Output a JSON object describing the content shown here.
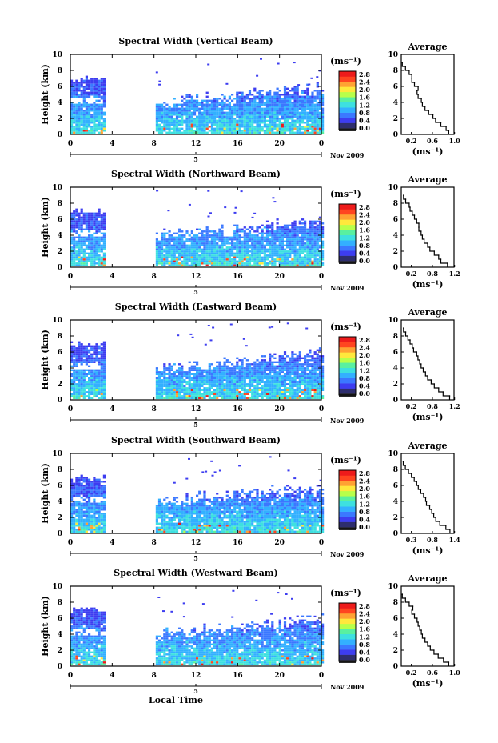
{
  "chart_data": [
    {
      "type": "heatmap",
      "title": "Spectral Width (Vertical Beam)",
      "ylabel": "Height (km)",
      "x_ticks": [
        "0",
        "4",
        "8",
        "12",
        "16",
        "20",
        "0"
      ],
      "y_ticks": [
        "0",
        "2",
        "4",
        "6",
        "8",
        "10"
      ],
      "xlim": [
        0,
        24
      ],
      "ylim": [
        0,
        10
      ],
      "day_label": "5",
      "date_label": "Nov 2009",
      "colorbar": {
        "unit": "(ms⁻¹)",
        "ticks": [
          "0.0",
          "0.4",
          "0.8",
          "1.2",
          "1.6",
          "2.0",
          "2.4",
          "2.8"
        ],
        "range": [
          0,
          2.8
        ]
      },
      "profile": {
        "title": "Average",
        "xlabel": "(ms⁻¹)",
        "x_ticks": [
          "0.2",
          "0.6",
          "1.0"
        ],
        "xlim": [
          0.1,
          1.1
        ],
        "heights": [
          0.5,
          1,
          1.5,
          2,
          2.5,
          3,
          3.5,
          4,
          4.5,
          5,
          5.5,
          6,
          6.5,
          7,
          7.5,
          8,
          8.5,
          9
        ],
        "values": [
          1.0,
          0.95,
          0.85,
          0.75,
          0.7,
          0.62,
          0.55,
          0.5,
          0.48,
          0.42,
          0.4,
          0.42,
          0.35,
          0.3,
          0.3,
          0.25,
          0.18,
          0.12
        ]
      }
    },
    {
      "type": "heatmap",
      "title": "Spectral Width (Northward Beam)",
      "ylabel": "Height (km)",
      "x_ticks": [
        "0",
        "4",
        "8",
        "12",
        "16",
        "20",
        "0"
      ],
      "y_ticks": [
        "0",
        "2",
        "4",
        "6",
        "8",
        "10"
      ],
      "xlim": [
        0,
        24
      ],
      "ylim": [
        0,
        10
      ],
      "day_label": "5",
      "date_label": "Nov 2009",
      "colorbar": {
        "unit": "(ms⁻¹)",
        "ticks": [
          "0.0",
          "0.4",
          "0.8",
          "1.2",
          "1.6",
          "2.0",
          "2.4",
          "2.8"
        ],
        "range": [
          0,
          2.8
        ]
      },
      "profile": {
        "title": "Average",
        "xlabel": "(ms⁻¹)",
        "x_ticks": [
          "0.2",
          "0.8",
          "1.2"
        ],
        "xlim": [
          0.1,
          1.3
        ],
        "heights": [
          0.5,
          1,
          1.5,
          2,
          2.5,
          3,
          3.5,
          4,
          4.5,
          5,
          5.5,
          6,
          6.5,
          7,
          7.5,
          8,
          8.5,
          9
        ],
        "values": [
          1.15,
          1.0,
          0.95,
          0.85,
          0.75,
          0.7,
          0.62,
          0.58,
          0.55,
          0.5,
          0.5,
          0.45,
          0.4,
          0.35,
          0.3,
          0.28,
          0.2,
          0.15
        ]
      }
    },
    {
      "type": "heatmap",
      "title": "Spectral Width (Eastward Beam)",
      "ylabel": "Height (km)",
      "x_ticks": [
        "0",
        "4",
        "8",
        "12",
        "16",
        "20",
        "0"
      ],
      "y_ticks": [
        "0",
        "2",
        "4",
        "6",
        "8",
        "10"
      ],
      "xlim": [
        0,
        24
      ],
      "ylim": [
        0,
        10
      ],
      "day_label": "5",
      "date_label": "Nov 2009",
      "colorbar": {
        "unit": "(ms⁻¹)",
        "ticks": [
          "0.0",
          "0.4",
          "0.8",
          "1.2",
          "1.6",
          "2.0",
          "2.4",
          "2.8"
        ],
        "range": [
          0,
          2.8
        ]
      },
      "profile": {
        "title": "Average",
        "xlabel": "(ms⁻¹)",
        "x_ticks": [
          "0.2",
          "0.8",
          "1.2"
        ],
        "xlim": [
          0.1,
          1.3
        ],
        "heights": [
          0.5,
          1,
          1.5,
          2,
          2.5,
          3,
          3.5,
          4,
          4.5,
          5,
          5.5,
          6,
          6.5,
          7,
          7.5,
          8,
          8.5,
          9
        ],
        "values": [
          1.2,
          1.05,
          0.95,
          0.85,
          0.78,
          0.7,
          0.65,
          0.6,
          0.55,
          0.52,
          0.48,
          0.45,
          0.38,
          0.35,
          0.3,
          0.25,
          0.2,
          0.15
        ]
      }
    },
    {
      "type": "heatmap",
      "title": "Spectral Width (Southward Beam)",
      "ylabel": "Height (km)",
      "x_ticks": [
        "0",
        "4",
        "8",
        "12",
        "16",
        "20",
        "0"
      ],
      "y_ticks": [
        "0",
        "2",
        "4",
        "6",
        "8",
        "10"
      ],
      "xlim": [
        0,
        24
      ],
      "ylim": [
        0,
        10
      ],
      "day_label": "5",
      "date_label": "Nov 2009",
      "colorbar": {
        "unit": "(ms⁻¹)",
        "ticks": [
          "0.0",
          "0.4",
          "0.8",
          "1.2",
          "1.6",
          "2.0",
          "2.4",
          "2.8"
        ],
        "range": [
          0,
          2.8
        ]
      },
      "profile": {
        "title": "Average",
        "xlabel": "(ms⁻¹)",
        "x_ticks": [
          "0.3",
          "0.8",
          "1.4"
        ],
        "xlim": [
          0.1,
          1.4
        ],
        "heights": [
          0.5,
          1,
          1.5,
          2,
          2.5,
          3,
          3.5,
          4,
          4.5,
          5,
          5.5,
          6,
          6.5,
          7,
          7.5,
          8,
          8.5,
          9
        ],
        "values": [
          1.3,
          1.2,
          1.05,
          0.95,
          0.9,
          0.85,
          0.8,
          0.72,
          0.7,
          0.65,
          0.58,
          0.52,
          0.48,
          0.42,
          0.35,
          0.28,
          0.2,
          0.15
        ]
      }
    },
    {
      "type": "heatmap",
      "title": "Spectral Width (Westward Beam)",
      "ylabel": "Height (km)",
      "x_ticks": [
        "0",
        "4",
        "8",
        "12",
        "16",
        "20",
        "0"
      ],
      "y_ticks": [
        "0",
        "2",
        "4",
        "6",
        "8",
        "10"
      ],
      "xlim": [
        0,
        24
      ],
      "ylim": [
        0,
        10
      ],
      "day_label": "5",
      "date_label": "Nov 2009",
      "x_title": "Local Time",
      "colorbar": {
        "unit": "(ms⁻¹)",
        "ticks": [
          "0.0",
          "0.4",
          "0.8",
          "1.2",
          "1.6",
          "2.0",
          "2.4",
          "2.8"
        ],
        "range": [
          0,
          2.8
        ]
      },
      "profile": {
        "title": "Average",
        "xlabel": "(ms⁻¹)",
        "x_ticks": [
          "0.2",
          "0.6",
          "1.0"
        ],
        "xlim": [
          0.1,
          1.1
        ],
        "heights": [
          0.5,
          1,
          1.5,
          2,
          2.5,
          3,
          3.5,
          4,
          4.5,
          5,
          5.5,
          6,
          6.5,
          7,
          7.5,
          8,
          8.5,
          9
        ],
        "values": [
          1.0,
          0.9,
          0.8,
          0.72,
          0.65,
          0.6,
          0.55,
          0.5,
          0.48,
          0.45,
          0.42,
          0.4,
          0.35,
          0.3,
          0.32,
          0.25,
          0.18,
          0.12
        ]
      }
    }
  ],
  "colormap": [
    "#2e2e6e",
    "#3d3df0",
    "#3b78ff",
    "#33b0ff",
    "#3ee0e0",
    "#59f0a0",
    "#b8ff4a",
    "#ffe83c",
    "#ffa233",
    "#ff4520",
    "#ee1b1b"
  ]
}
